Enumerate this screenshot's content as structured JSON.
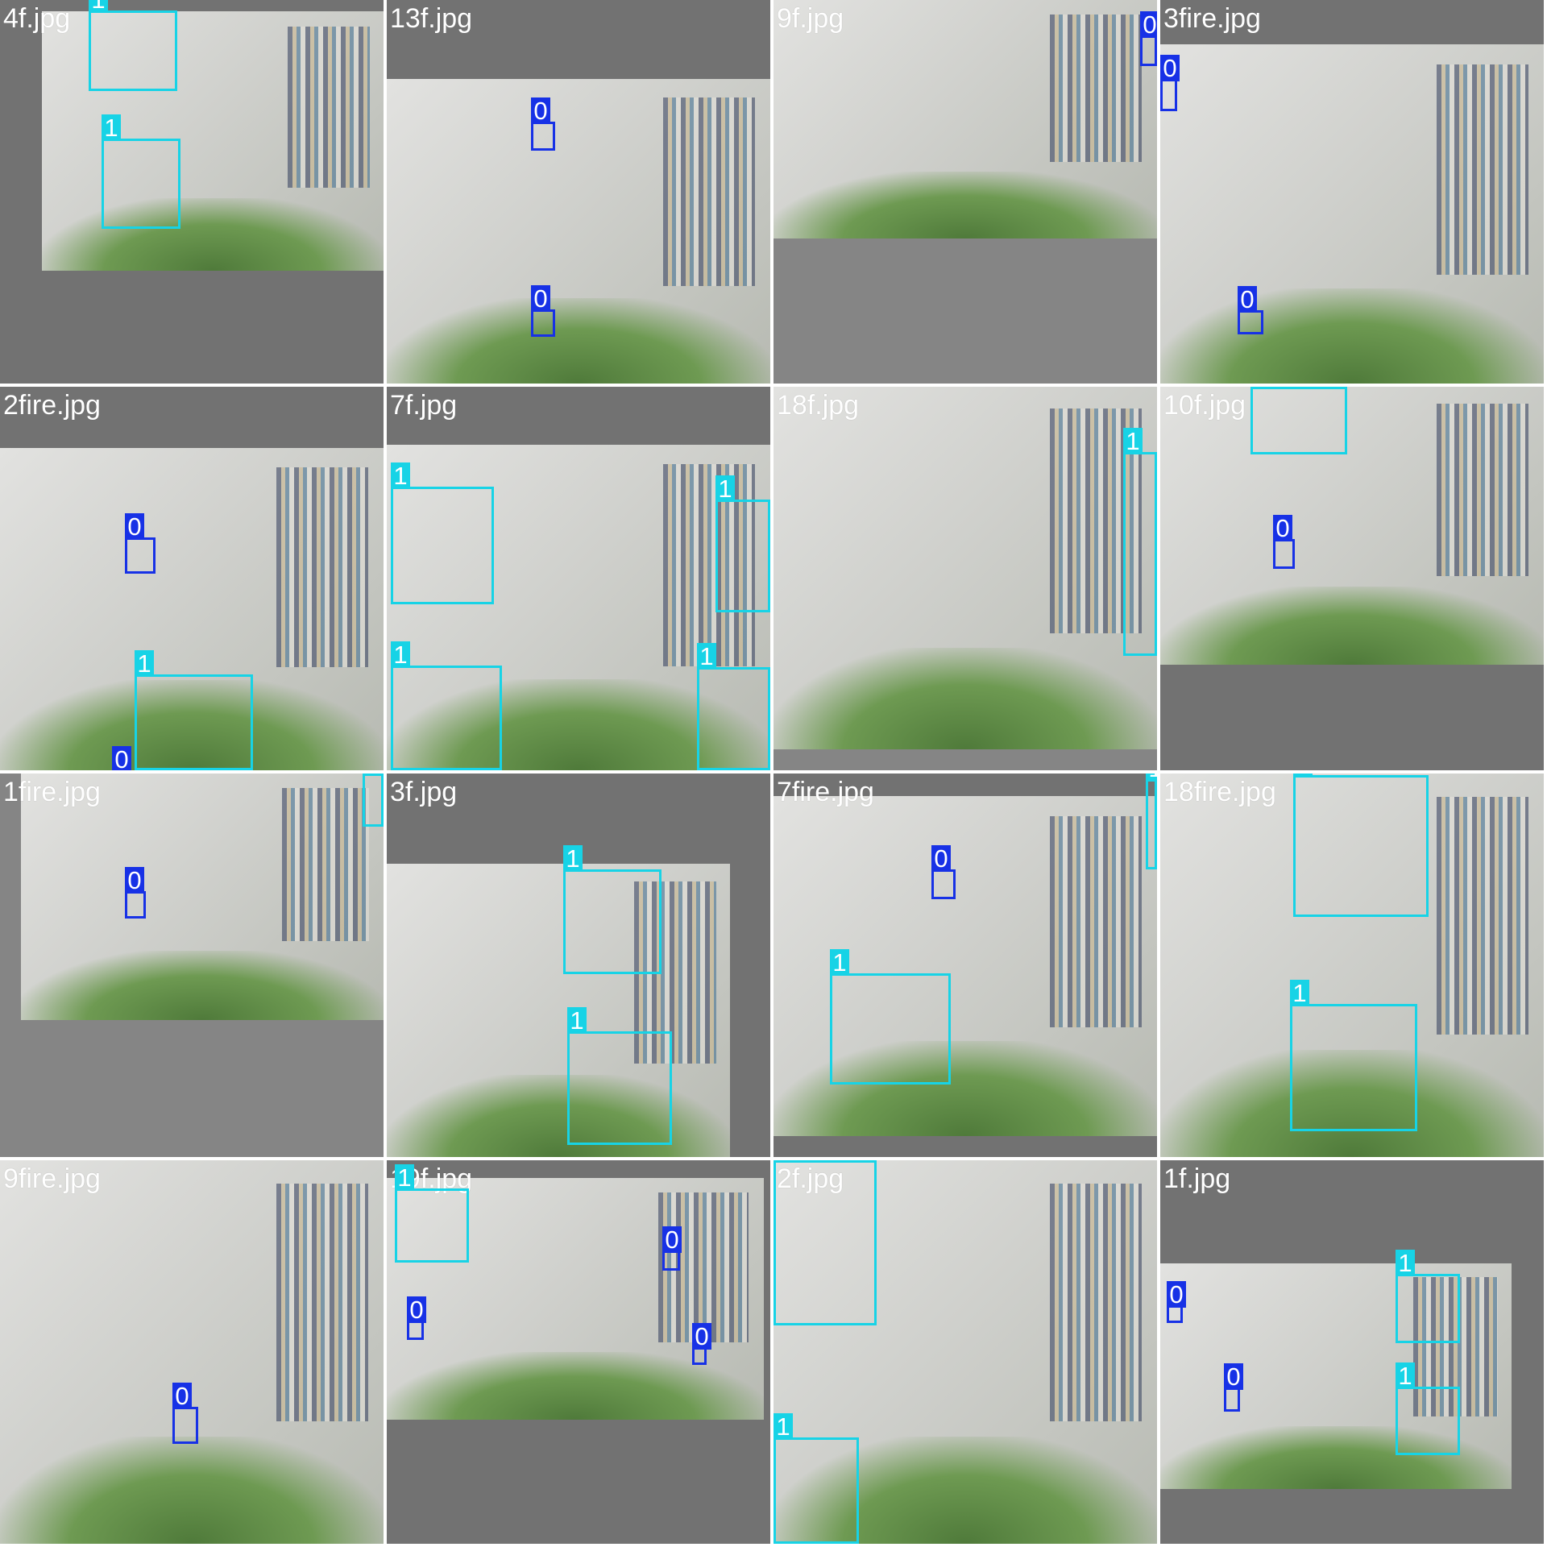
{
  "colors": {
    "class_1": "#17d3e6",
    "class_0": "#1731e6",
    "padding": "#727272",
    "label_text": "#ffffff"
  },
  "tiles": [
    {
      "file": "4f.jpg",
      "boxes": [
        "1",
        "1"
      ]
    },
    {
      "file": "13f.jpg",
      "boxes": [
        "0",
        "0"
      ]
    },
    {
      "file": "9f.jpg",
      "boxes": [
        "0"
      ]
    },
    {
      "file": "3fire.jpg",
      "boxes": [
        "0",
        "0"
      ]
    },
    {
      "file": "2fire.jpg",
      "boxes": [
        "0",
        "1",
        "0"
      ]
    },
    {
      "file": "7f.jpg",
      "boxes": [
        "1",
        "1",
        "1",
        "1"
      ]
    },
    {
      "file": "18f.jpg",
      "boxes": [
        "1"
      ]
    },
    {
      "file": "10f.jpg",
      "boxes": [
        "1",
        "0"
      ]
    },
    {
      "file": "1fire.jpg",
      "boxes": [
        "1",
        "0"
      ]
    },
    {
      "file": "3f.jpg",
      "boxes": [
        "1",
        "1"
      ]
    },
    {
      "file": "7fire.jpg",
      "boxes": [
        "1",
        "0",
        "1"
      ]
    },
    {
      "file": "18fire.jpg",
      "boxes": [
        "1",
        "1"
      ]
    },
    {
      "file": "9fire.jpg",
      "boxes": [
        "0"
      ]
    },
    {
      "file": "19f.jpg",
      "boxes": [
        "1",
        "0",
        "0",
        "0"
      ]
    },
    {
      "file": "2f.jpg",
      "boxes": [
        "1",
        "1"
      ]
    },
    {
      "file": "1f.jpg",
      "boxes": [
        "0",
        "1",
        "0",
        "1"
      ]
    }
  ]
}
